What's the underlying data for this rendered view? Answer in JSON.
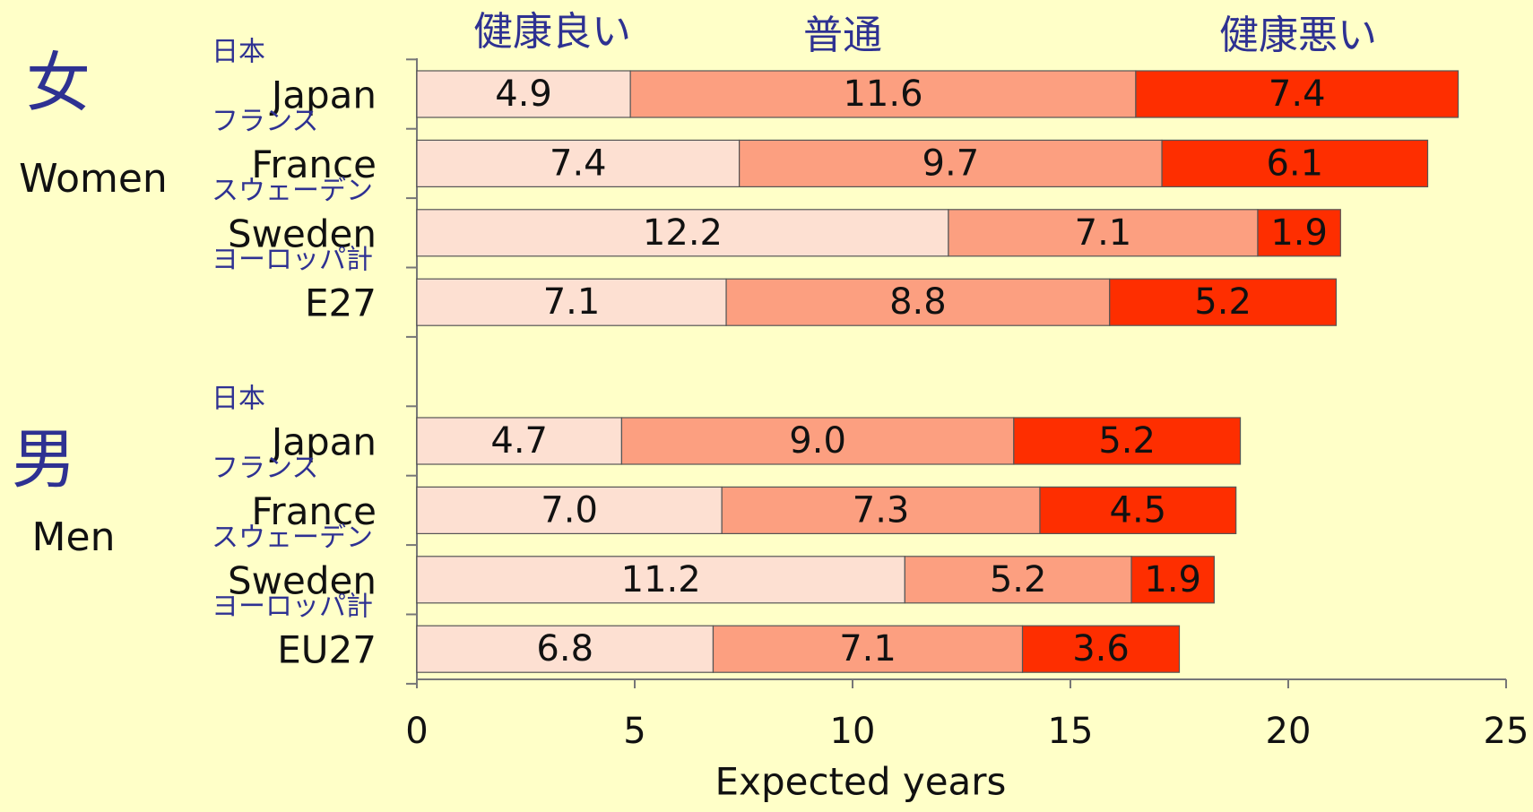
{
  "chart_data": {
    "type": "stacked_bar_horizontal",
    "xlabel": "Expected years",
    "xlim": [
      0,
      25
    ],
    "xticks": [
      0,
      5,
      10,
      15,
      20,
      25
    ],
    "groups": [
      {
        "label": "女",
        "sublabel": "Women",
        "categories": [
          "Japan",
          "France",
          "Sweden",
          "E27"
        ],
        "categories_ja": [
          "日本",
          "フランス",
          "スウェーデン",
          "ヨーロッパ計"
        ]
      },
      {
        "label": "男",
        "sublabel": "Men",
        "categories": [
          "Japan",
          "France",
          "Sweden",
          "EU27"
        ],
        "categories_ja": [
          "日本",
          "フランス",
          "スウェーデン",
          "ヨーロッパ計"
        ]
      }
    ],
    "series": [
      {
        "name": "健康良い",
        "color": "#fde0d2",
        "values": [
          4.9,
          7.4,
          12.2,
          7.1,
          4.7,
          7.0,
          11.2,
          6.8
        ],
        "value_labels": [
          "4.9",
          "7.4",
          "12.2",
          "7.1",
          "4.7",
          "7.0",
          "11.2",
          "6.8"
        ]
      },
      {
        "name": "普通",
        "color": "#fc9f80",
        "values": [
          11.6,
          9.7,
          7.1,
          8.8,
          9.0,
          7.3,
          5.2,
          7.1
        ],
        "value_labels": [
          "11.6",
          "9.7",
          "7.1",
          "8.8",
          "9.0",
          "7.3",
          "5.2",
          "7.1"
        ]
      },
      {
        "name": "健康悪い",
        "color": "#fe2e00",
        "values": [
          7.4,
          6.1,
          1.9,
          5.2,
          5.2,
          4.5,
          1.9,
          3.6
        ],
        "value_labels": [
          "7.4",
          "6.1",
          "1.9",
          "5.2",
          "5.2",
          "4.5",
          "1.9",
          "3.6"
        ]
      }
    ]
  }
}
